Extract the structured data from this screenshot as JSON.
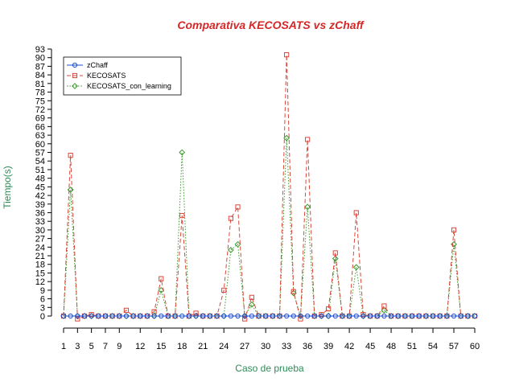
{
  "chart_data": {
    "type": "line",
    "title": "Comparativa KECOSATS vs zChaff",
    "xlabel": "Caso de prueba",
    "ylabel": "Tiempo(s)",
    "xlim": [
      1,
      60
    ],
    "ylim": [
      0,
      93
    ],
    "x_ticks": [
      1,
      3,
      5,
      7,
      9,
      12,
      15,
      18,
      21,
      24,
      27,
      30,
      33,
      36,
      39,
      42,
      45,
      48,
      51,
      54,
      57,
      60
    ],
    "y_ticks": [
      0,
      3,
      6,
      9,
      12,
      15,
      18,
      21,
      24,
      27,
      30,
      33,
      36,
      39,
      42,
      45,
      48,
      51,
      54,
      57,
      60,
      63,
      66,
      69,
      72,
      75,
      78,
      81,
      84,
      87,
      90,
      93
    ],
    "legend_position": "top-left",
    "series": [
      {
        "name": "zChaff",
        "color": "#1f4fd0",
        "marker": "circle",
        "dash": "solid",
        "values": [
          0,
          0,
          0,
          0,
          0,
          0,
          0,
          0,
          0,
          0,
          0,
          0,
          0,
          0,
          0,
          0,
          0,
          0,
          0,
          0,
          0,
          0,
          0,
          0,
          0,
          0,
          0,
          0,
          0,
          0,
          0,
          0,
          0,
          0,
          0,
          0,
          0,
          0,
          0,
          0,
          0,
          0,
          0,
          0,
          0,
          0,
          0,
          0,
          0,
          0,
          0,
          0,
          0,
          0,
          0,
          0,
          0,
          0,
          0,
          0
        ]
      },
      {
        "name": "KECOSATS",
        "color": "#d9473a",
        "marker": "square",
        "dash": "dashed",
        "values": [
          0,
          56,
          -1,
          0,
          0.5,
          0,
          0,
          0,
          0,
          2,
          0,
          0,
          0,
          1.5,
          13,
          0,
          0,
          35,
          0,
          1,
          0,
          0,
          0,
          9,
          34,
          38,
          -1,
          6.5,
          0,
          0,
          0,
          0,
          91,
          8.5,
          -1,
          61.5,
          0,
          0.5,
          2.5,
          22,
          0,
          0,
          36,
          0.5,
          0,
          0,
          3.5,
          0,
          0,
          0,
          0,
          0,
          0,
          0,
          0,
          0,
          30,
          0,
          0,
          0
        ]
      },
      {
        "name": "KECOSATS_con_learning",
        "color": "#3a9a2c",
        "marker": "diamond",
        "dash": "dotted",
        "values": [
          0,
          44,
          0,
          0,
          0,
          0,
          0,
          0,
          0,
          0,
          0,
          0,
          0,
          0,
          9,
          0,
          0,
          57,
          0,
          0,
          0,
          0,
          0,
          0,
          23,
          25,
          0,
          4,
          0,
          0,
          0,
          0,
          62,
          8,
          0,
          38,
          0,
          0,
          0,
          20,
          0,
          0,
          17,
          0,
          0,
          0,
          2,
          0,
          0,
          0,
          0,
          0,
          0,
          0,
          0,
          0,
          25,
          0,
          0,
          0
        ]
      }
    ]
  }
}
